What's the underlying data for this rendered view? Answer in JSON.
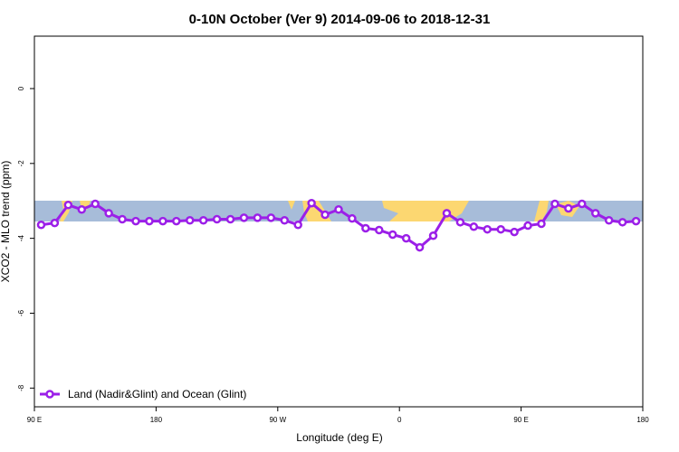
{
  "chart_data": {
    "type": "line",
    "title": "0-10N October (Ver 9)   2014-09-06 to 2018-12-31",
    "x_label": "Longitude (deg E)",
    "y_label": "XCO2 - MLO trend (ppm)",
    "x": [
      95,
      105,
      115,
      125,
      135,
      145,
      155,
      165,
      175,
      185,
      195,
      205,
      215,
      225,
      235,
      245,
      255,
      265,
      275,
      285,
      295,
      305,
      315,
      325,
      335,
      345,
      355,
      365,
      375,
      385,
      395,
      405,
      415,
      425,
      435,
      445,
      455,
      465,
      475,
      485,
      495,
      505,
      515,
      525,
      535
    ],
    "series": [
      {
        "name": "Land (Nadir&Glint) and Ocean (Glint)",
        "color": "#9b1fe8",
        "values": [
          -3.64,
          -3.59,
          -3.11,
          -3.23,
          -3.08,
          -3.33,
          -3.49,
          -3.54,
          -3.54,
          -3.54,
          -3.54,
          -3.52,
          -3.52,
          -3.49,
          -3.49,
          -3.45,
          -3.45,
          -3.45,
          -3.52,
          -3.64,
          -3.06,
          -3.37,
          -3.23,
          -3.47,
          -3.73,
          -3.78,
          -3.9,
          -4.0,
          -4.24,
          -3.93,
          -3.33,
          -3.57,
          -3.69,
          -3.76,
          -3.76,
          -3.83,
          -3.66,
          -3.61,
          -3.08,
          -3.2,
          -3.08,
          -3.33,
          -3.52,
          -3.57,
          -3.54
        ]
      }
    ],
    "xlim": [
      90,
      540
    ],
    "xticks": [
      {
        "value": 90,
        "label": "90 E"
      },
      {
        "value": 180,
        "label": "180"
      },
      {
        "value": 270,
        "label": "90 W"
      },
      {
        "value": 360,
        "label": "0"
      },
      {
        "value": 450,
        "label": "90 E"
      },
      {
        "value": 540,
        "label": "180"
      }
    ],
    "ylim": [
      -8.5,
      1.4
    ],
    "yticks": [
      0,
      -2,
      -4,
      -6,
      -8
    ],
    "legend": "bottom-left"
  }
}
